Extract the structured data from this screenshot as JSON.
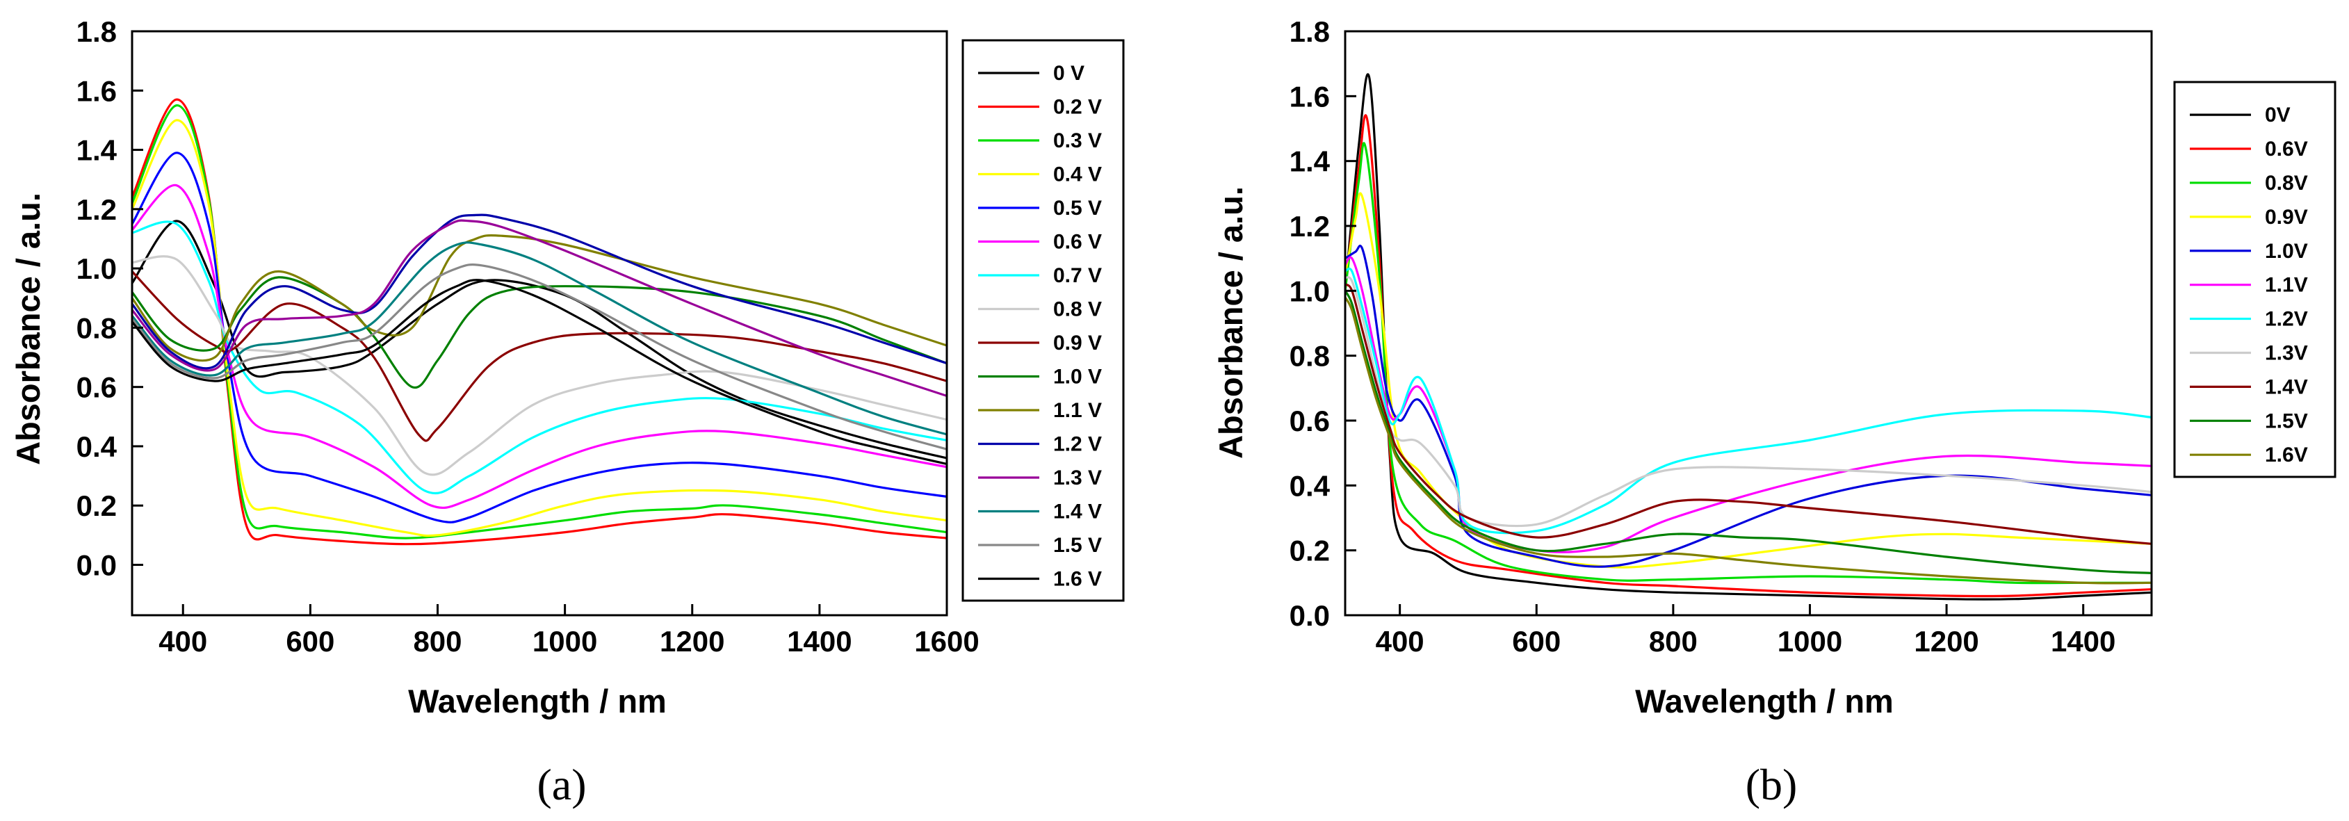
{
  "chart_data": [
    {
      "type": "line",
      "panel_label": "(a)",
      "xlabel": "Wavelength / nm",
      "ylabel": "Absorbance / a.u.",
      "xlim": [
        320,
        1600
      ],
      "ylim": [
        -0.17,
        1.8
      ],
      "xticks": [
        "400",
        "600",
        "800",
        "1000",
        "1200",
        "1400",
        "1600"
      ],
      "yticks": [
        "0.0",
        "0.2",
        "0.4",
        "0.6",
        "0.8",
        "1.0",
        "1.2",
        "1.4",
        "1.6",
        "1.8"
      ],
      "legend_position": "right-outside",
      "series": [
        {
          "name": "0 V",
          "color": "#000000",
          "x": [
            320,
            390,
            450,
            500,
            560,
            650,
            700,
            800,
            880,
            1000,
            1100,
            1200,
            1300,
            1400,
            1500,
            1600
          ],
          "y": [
            0.95,
            1.16,
            0.94,
            0.66,
            0.65,
            0.67,
            0.72,
            0.88,
            0.96,
            0.91,
            0.78,
            0.64,
            0.54,
            0.47,
            0.41,
            0.36
          ]
        },
        {
          "name": "0.2 V",
          "color": "#ff0000",
          "x": [
            320,
            390,
            440,
            470,
            500,
            550,
            650,
            750,
            850,
            1000,
            1100,
            1200,
            1260,
            1400,
            1500,
            1600
          ],
          "y": [
            1.24,
            1.57,
            1.25,
            0.6,
            0.13,
            0.1,
            0.08,
            0.07,
            0.08,
            0.11,
            0.14,
            0.16,
            0.17,
            0.14,
            0.11,
            0.09
          ]
        },
        {
          "name": "0.3 V",
          "color": "#00dd00",
          "x": [
            320,
            390,
            440,
            470,
            500,
            550,
            650,
            750,
            850,
            1000,
            1100,
            1200,
            1260,
            1400,
            1500,
            1600
          ],
          "y": [
            1.22,
            1.55,
            1.24,
            0.62,
            0.17,
            0.13,
            0.11,
            0.09,
            0.11,
            0.15,
            0.18,
            0.19,
            0.2,
            0.17,
            0.14,
            0.11
          ]
        },
        {
          "name": "0.4 V",
          "color": "#ffff00",
          "x": [
            320,
            390,
            440,
            470,
            500,
            550,
            650,
            750,
            800,
            900,
            1000,
            1100,
            1250,
            1400,
            1500,
            1600
          ],
          "y": [
            1.2,
            1.5,
            1.22,
            0.65,
            0.23,
            0.19,
            0.15,
            0.11,
            0.1,
            0.14,
            0.2,
            0.24,
            0.25,
            0.22,
            0.18,
            0.15
          ]
        },
        {
          "name": "0.5 V",
          "color": "#0000ff",
          "x": [
            320,
            390,
            440,
            470,
            510,
            600,
            700,
            800,
            850,
            950,
            1050,
            1150,
            1250,
            1400,
            1500,
            1600
          ],
          "y": [
            1.15,
            1.39,
            1.15,
            0.7,
            0.36,
            0.3,
            0.23,
            0.15,
            0.16,
            0.25,
            0.31,
            0.34,
            0.34,
            0.3,
            0.26,
            0.23
          ]
        },
        {
          "name": "0.6 V",
          "color": "#ff00ff",
          "x": [
            320,
            390,
            440,
            470,
            510,
            600,
            700,
            790,
            850,
            950,
            1050,
            1150,
            1250,
            1400,
            1500,
            1600
          ],
          "y": [
            1.13,
            1.28,
            1.05,
            0.72,
            0.48,
            0.43,
            0.33,
            0.2,
            0.22,
            0.32,
            0.4,
            0.44,
            0.45,
            0.41,
            0.37,
            0.33
          ]
        },
        {
          "name": "0.7 V",
          "color": "#00ffff",
          "x": [
            320,
            390,
            440,
            470,
            520,
            580,
            680,
            780,
            850,
            950,
            1050,
            1150,
            1250,
            1400,
            1500,
            1600
          ],
          "y": [
            1.12,
            1.15,
            0.96,
            0.75,
            0.59,
            0.58,
            0.47,
            0.25,
            0.3,
            0.43,
            0.51,
            0.55,
            0.56,
            0.51,
            0.46,
            0.42
          ]
        },
        {
          "name": "0.8 V",
          "color": "#cccccc",
          "x": [
            320,
            390,
            450,
            480,
            540,
            600,
            700,
            780,
            850,
            950,
            1050,
            1150,
            1250,
            1400,
            1500,
            1600
          ],
          "y": [
            1.02,
            1.03,
            0.85,
            0.74,
            0.72,
            0.7,
            0.53,
            0.31,
            0.38,
            0.54,
            0.61,
            0.64,
            0.65,
            0.59,
            0.54,
            0.49
          ]
        },
        {
          "name": "0.9 V",
          "color": "#8b0000",
          "x": [
            320,
            390,
            450,
            480,
            560,
            650,
            700,
            770,
            800,
            880,
            950,
            1050,
            1250,
            1400,
            1500,
            1600
          ],
          "y": [
            0.99,
            0.83,
            0.74,
            0.73,
            0.88,
            0.8,
            0.7,
            0.44,
            0.46,
            0.67,
            0.75,
            0.78,
            0.77,
            0.72,
            0.68,
            0.62
          ]
        },
        {
          "name": "1.0 V",
          "color": "#008000",
          "x": [
            320,
            380,
            450,
            490,
            550,
            650,
            700,
            760,
            800,
            850,
            900,
            1000,
            1200,
            1400,
            1500,
            1600
          ],
          "y": [
            0.92,
            0.76,
            0.73,
            0.86,
            0.97,
            0.88,
            0.77,
            0.6,
            0.69,
            0.85,
            0.92,
            0.94,
            0.92,
            0.84,
            0.76,
            0.68
          ]
        },
        {
          "name": "1.1 V",
          "color": "#808000",
          "x": [
            320,
            380,
            450,
            490,
            550,
            650,
            700,
            760,
            820,
            860,
            900,
            1000,
            1200,
            1400,
            1500,
            1600
          ],
          "y": [
            0.9,
            0.73,
            0.7,
            0.88,
            0.99,
            0.88,
            0.79,
            0.8,
            1.04,
            1.1,
            1.11,
            1.08,
            0.97,
            0.88,
            0.81,
            0.74
          ]
        },
        {
          "name": "1.2 V",
          "color": "#0000aa",
          "x": [
            320,
            380,
            450,
            500,
            560,
            650,
            700,
            760,
            820,
            860,
            900,
            1000,
            1200,
            1400,
            1500,
            1600
          ],
          "y": [
            0.88,
            0.72,
            0.67,
            0.86,
            0.94,
            0.86,
            0.87,
            1.04,
            1.16,
            1.18,
            1.17,
            1.11,
            0.94,
            0.82,
            0.75,
            0.68
          ]
        },
        {
          "name": "1.3 V",
          "color": "#990099",
          "x": [
            320,
            380,
            450,
            500,
            560,
            650,
            700,
            760,
            820,
            850,
            900,
            1000,
            1200,
            1400,
            1500,
            1600
          ],
          "y": [
            0.86,
            0.71,
            0.66,
            0.81,
            0.83,
            0.84,
            0.88,
            1.06,
            1.15,
            1.16,
            1.14,
            1.06,
            0.88,
            0.71,
            0.64,
            0.57
          ]
        },
        {
          "name": "1.4 V",
          "color": "#008080",
          "x": [
            320,
            380,
            450,
            500,
            560,
            650,
            700,
            780,
            830,
            870,
            950,
            1050,
            1200,
            1400,
            1500,
            1600
          ],
          "y": [
            0.84,
            0.69,
            0.64,
            0.73,
            0.75,
            0.78,
            0.82,
            1.01,
            1.08,
            1.08,
            1.03,
            0.92,
            0.75,
            0.58,
            0.5,
            0.44
          ]
        },
        {
          "name": "1.5 V",
          "color": "#888888",
          "x": [
            320,
            380,
            450,
            500,
            560,
            650,
            700,
            780,
            830,
            870,
            950,
            1050,
            1200,
            1400,
            1500,
            1600
          ],
          "y": [
            0.83,
            0.68,
            0.63,
            0.69,
            0.71,
            0.75,
            0.78,
            0.94,
            1.0,
            1.01,
            0.96,
            0.86,
            0.69,
            0.52,
            0.45,
            0.39
          ]
        },
        {
          "name": "1.6 V",
          "color": "#000000",
          "x": [
            320,
            380,
            450,
            500,
            560,
            650,
            700,
            780,
            830,
            870,
            950,
            1050,
            1200,
            1400,
            1500,
            1600
          ],
          "y": [
            0.82,
            0.67,
            0.62,
            0.66,
            0.68,
            0.71,
            0.74,
            0.88,
            0.94,
            0.96,
            0.91,
            0.8,
            0.62,
            0.45,
            0.39,
            0.34
          ]
        }
      ]
    },
    {
      "type": "line",
      "panel_label": "(b)",
      "xlabel": "Wavelength / nm",
      "ylabel": "Absorbance / a.u.",
      "xlim": [
        320,
        1500
      ],
      "ylim": [
        0.0,
        1.8
      ],
      "xticks": [
        "400",
        "600",
        "800",
        "1000",
        "1200",
        "1400"
      ],
      "yticks": [
        "0.0",
        "0.2",
        "0.4",
        "0.6",
        "0.8",
        "1.0",
        "1.2",
        "1.4",
        "1.6",
        "1.8"
      ],
      "legend_position": "right-outside",
      "series": [
        {
          "name": "0V",
          "color": "#000000",
          "x": [
            320,
            340,
            355,
            370,
            385,
            400,
            450,
            500,
            600,
            700,
            800,
            1000,
            1200,
            1300,
            1400,
            1500
          ],
          "y": [
            1.0,
            1.45,
            1.66,
            1.2,
            0.5,
            0.24,
            0.19,
            0.13,
            0.1,
            0.08,
            0.07,
            0.06,
            0.05,
            0.05,
            0.06,
            0.07
          ]
        },
        {
          "name": "0.6V",
          "color": "#ff0000",
          "x": [
            320,
            340,
            352,
            370,
            390,
            420,
            480,
            560,
            700,
            800,
            1000,
            1200,
            1300,
            1400,
            1500
          ],
          "y": [
            1.0,
            1.38,
            1.53,
            1.1,
            0.4,
            0.26,
            0.17,
            0.14,
            0.1,
            0.09,
            0.07,
            0.06,
            0.06,
            0.07,
            0.08
          ]
        },
        {
          "name": "0.8V",
          "color": "#00dd00",
          "x": [
            320,
            340,
            350,
            370,
            390,
            430,
            480,
            560,
            700,
            800,
            1000,
            1200,
            1300,
            1400,
            1500
          ],
          "y": [
            1.0,
            1.34,
            1.44,
            1.05,
            0.45,
            0.28,
            0.23,
            0.15,
            0.11,
            0.11,
            0.12,
            0.11,
            0.1,
            0.1,
            0.1
          ]
        },
        {
          "name": "0.9V",
          "color": "#ffff00",
          "x": [
            320,
            335,
            345,
            370,
            395,
            430,
            480,
            560,
            700,
            800,
            950,
            1100,
            1200,
            1300,
            1400,
            1500
          ],
          "y": [
            1.05,
            1.22,
            1.29,
            1.0,
            0.55,
            0.44,
            0.32,
            0.2,
            0.15,
            0.16,
            0.2,
            0.24,
            0.25,
            0.24,
            0.23,
            0.22
          ]
        },
        {
          "name": "1.0V",
          "color": "#0000dd",
          "x": [
            320,
            335,
            345,
            360,
            380,
            400,
            430,
            480,
            500,
            600,
            700,
            800,
            1000,
            1200,
            1400,
            1500
          ],
          "y": [
            1.1,
            1.12,
            1.13,
            0.98,
            0.7,
            0.6,
            0.66,
            0.43,
            0.25,
            0.18,
            0.15,
            0.2,
            0.36,
            0.43,
            0.39,
            0.37
          ]
        },
        {
          "name": "1.1V",
          "color": "#ff00ff",
          "x": [
            320,
            330,
            345,
            365,
            385,
            400,
            430,
            480,
            500,
            600,
            700,
            800,
            1000,
            1200,
            1400,
            1500
          ],
          "y": [
            1.08,
            1.1,
            1.0,
            0.8,
            0.62,
            0.62,
            0.7,
            0.45,
            0.27,
            0.2,
            0.21,
            0.3,
            0.42,
            0.49,
            0.47,
            0.46
          ]
        },
        {
          "name": "1.2V",
          "color": "#00ffff",
          "x": [
            320,
            330,
            345,
            365,
            385,
            400,
            430,
            480,
            500,
            600,
            700,
            800,
            1000,
            1200,
            1400,
            1500
          ],
          "y": [
            1.06,
            1.06,
            0.95,
            0.78,
            0.6,
            0.62,
            0.73,
            0.45,
            0.28,
            0.26,
            0.34,
            0.47,
            0.54,
            0.62,
            0.63,
            0.61
          ]
        },
        {
          "name": "1.3V",
          "color": "#cccccc",
          "x": [
            320,
            330,
            345,
            365,
            385,
            400,
            430,
            480,
            500,
            600,
            700,
            800,
            1000,
            1200,
            1400,
            1500
          ],
          "y": [
            1.04,
            1.03,
            0.92,
            0.74,
            0.58,
            0.54,
            0.53,
            0.4,
            0.3,
            0.28,
            0.37,
            0.45,
            0.45,
            0.43,
            0.4,
            0.38
          ]
        },
        {
          "name": "1.4V",
          "color": "#8b0000",
          "x": [
            320,
            330,
            345,
            365,
            385,
            400,
            450,
            500,
            600,
            700,
            800,
            900,
            1000,
            1200,
            1400,
            1500
          ],
          "y": [
            1.02,
            1.0,
            0.88,
            0.72,
            0.58,
            0.5,
            0.38,
            0.3,
            0.24,
            0.28,
            0.35,
            0.35,
            0.33,
            0.29,
            0.24,
            0.22
          ]
        },
        {
          "name": "1.5V",
          "color": "#008000",
          "x": [
            320,
            330,
            345,
            365,
            385,
            400,
            450,
            500,
            600,
            700,
            800,
            900,
            1000,
            1200,
            1400,
            1500
          ],
          "y": [
            1.0,
            0.96,
            0.84,
            0.69,
            0.56,
            0.48,
            0.36,
            0.27,
            0.2,
            0.22,
            0.25,
            0.24,
            0.23,
            0.18,
            0.14,
            0.13
          ]
        },
        {
          "name": "1.6V",
          "color": "#808000",
          "x": [
            320,
            330,
            345,
            365,
            385,
            400,
            450,
            500,
            600,
            700,
            800,
            900,
            1000,
            1200,
            1400,
            1500
          ],
          "y": [
            0.98,
            0.94,
            0.82,
            0.67,
            0.55,
            0.47,
            0.35,
            0.26,
            0.19,
            0.18,
            0.19,
            0.17,
            0.15,
            0.12,
            0.1,
            0.1
          ]
        }
      ]
    }
  ]
}
